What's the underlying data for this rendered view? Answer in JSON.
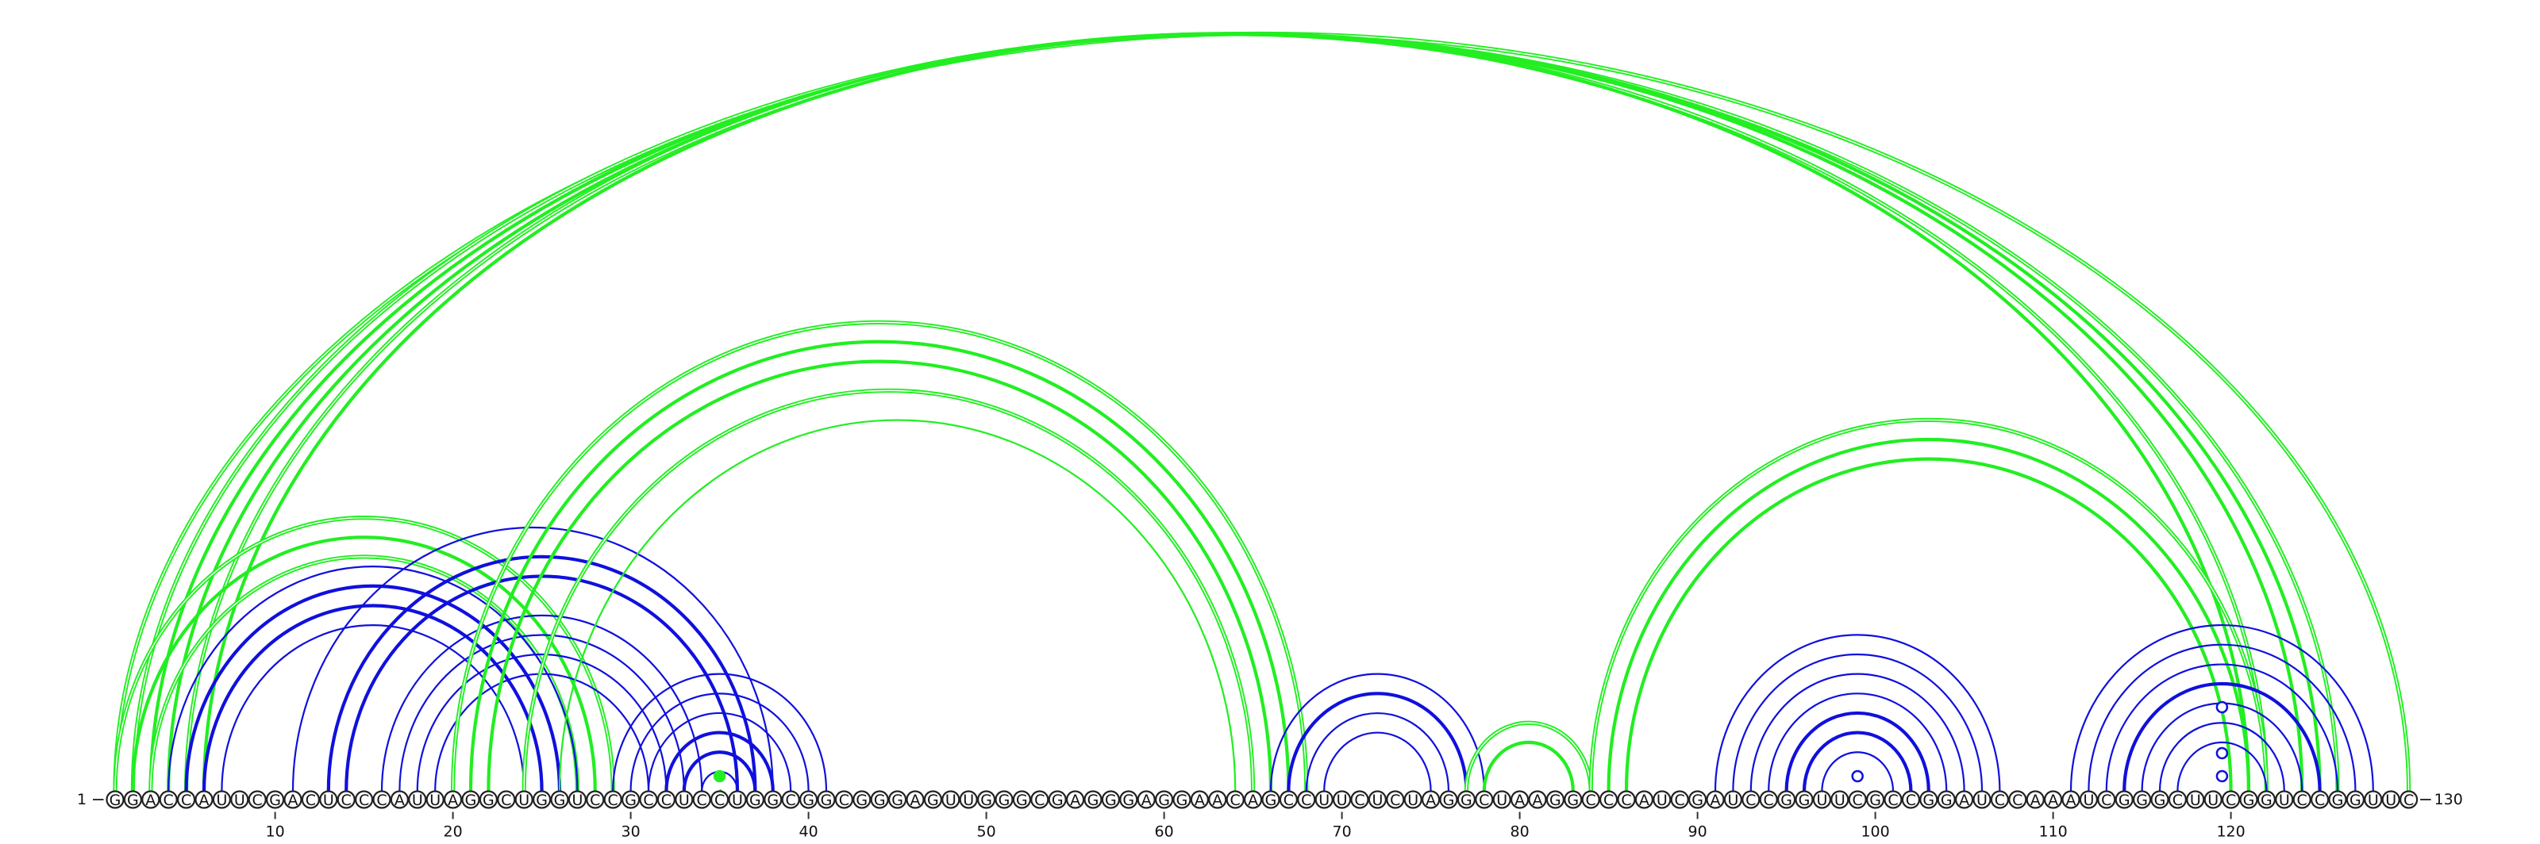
{
  "sequence": "GGACCAUUCGACUCCCAUUAGGCUGGUCCGCCUCCUGGCGGCGGGAGUUGGGCGAGGGAGGAACAGCCUUCUCUAGGCUAAGGCCCAUCGAUCCGGUUCGCCGGAUCCAAAUCGGGCUUCGGUCCGGUUC",
  "start_label": "1",
  "end_label": "130",
  "ticks": [
    10,
    20,
    30,
    40,
    50,
    60,
    70,
    80,
    90,
    100,
    110,
    120
  ],
  "colors": {
    "blue": "#1010dd",
    "green": "#22ee22"
  },
  "arcs": [
    {
      "i": 1,
      "j": 130,
      "color": "green",
      "style": "double"
    },
    {
      "i": 2,
      "j": 126,
      "color": "green",
      "style": "double"
    },
    {
      "i": 3,
      "j": 125,
      "color": "green",
      "style": "thick"
    },
    {
      "i": 4,
      "j": 124,
      "color": "green",
      "style": "thick"
    },
    {
      "i": 5,
      "j": 122,
      "color": "green",
      "style": "double"
    },
    {
      "i": 6,
      "j": 121,
      "color": "green",
      "style": "thick"
    },
    {
      "i": 1,
      "j": 29,
      "color": "green",
      "style": "double"
    },
    {
      "i": 2,
      "j": 28,
      "color": "green",
      "style": "thick"
    },
    {
      "i": 3,
      "j": 27,
      "color": "green",
      "style": "double"
    },
    {
      "i": 4,
      "j": 27,
      "color": "blue",
      "style": "thin"
    },
    {
      "i": 5,
      "j": 26,
      "color": "blue",
      "style": "thick"
    },
    {
      "i": 6,
      "j": 25,
      "color": "blue",
      "style": "thick"
    },
    {
      "i": 7,
      "j": 24,
      "color": "blue",
      "style": "thin"
    },
    {
      "i": 11,
      "j": 38,
      "color": "blue",
      "style": "thin"
    },
    {
      "i": 13,
      "j": 37,
      "color": "blue",
      "style": "thick"
    },
    {
      "i": 14,
      "j": 36,
      "color": "blue",
      "style": "thick"
    },
    {
      "i": 16,
      "j": 34,
      "color": "blue",
      "style": "thin"
    },
    {
      "i": 17,
      "j": 33,
      "color": "blue",
      "style": "thin"
    },
    {
      "i": 18,
      "j": 32,
      "color": "blue",
      "style": "thin"
    },
    {
      "i": 19,
      "j": 31,
      "color": "blue",
      "style": "thin"
    },
    {
      "i": 20,
      "j": 68,
      "color": "green",
      "style": "double"
    },
    {
      "i": 21,
      "j": 67,
      "color": "green",
      "style": "thick"
    },
    {
      "i": 22,
      "j": 66,
      "color": "green",
      "style": "thick"
    },
    {
      "i": 24,
      "j": 65,
      "color": "green",
      "style": "double"
    },
    {
      "i": 26,
      "j": 64,
      "color": "green",
      "style": "thin"
    },
    {
      "i": 29,
      "j": 41,
      "color": "blue",
      "style": "thin"
    },
    {
      "i": 30,
      "j": 40,
      "color": "blue",
      "style": "thin"
    },
    {
      "i": 31,
      "j": 39,
      "color": "blue",
      "style": "thin"
    },
    {
      "i": 32,
      "j": 38,
      "color": "blue",
      "style": "thick"
    },
    {
      "i": 33,
      "j": 37,
      "color": "blue",
      "style": "thick"
    },
    {
      "i": 34,
      "j": 36,
      "color": "blue",
      "style": "thin"
    },
    {
      "i": 35,
      "j": 35.1,
      "color": "green",
      "style": "thin"
    },
    {
      "i": 66,
      "j": 78,
      "color": "blue",
      "style": "thin"
    },
    {
      "i": 67,
      "j": 77,
      "color": "blue",
      "style": "thick"
    },
    {
      "i": 68,
      "j": 76,
      "color": "blue",
      "style": "thin"
    },
    {
      "i": 69,
      "j": 75,
      "color": "blue",
      "style": "thin"
    },
    {
      "i": 77,
      "j": 84,
      "color": "green",
      "style": "double"
    },
    {
      "i": 78,
      "j": 83,
      "color": "green",
      "style": "thick"
    },
    {
      "i": 84,
      "j": 122,
      "color": "green",
      "style": "double"
    },
    {
      "i": 85,
      "j": 121,
      "color": "green",
      "style": "thick"
    },
    {
      "i": 86,
      "j": 120,
      "color": "green",
      "style": "thick"
    },
    {
      "i": 91,
      "j": 107,
      "color": "blue",
      "style": "thin"
    },
    {
      "i": 92,
      "j": 106,
      "color": "blue",
      "style": "thin"
    },
    {
      "i": 93,
      "j": 105,
      "color": "blue",
      "style": "thin"
    },
    {
      "i": 94,
      "j": 104,
      "color": "blue",
      "style": "thin"
    },
    {
      "i": 95,
      "j": 103,
      "color": "blue",
      "style": "thick"
    },
    {
      "i": 96,
      "j": 102,
      "color": "blue",
      "style": "thick"
    },
    {
      "i": 97,
      "j": 101,
      "color": "blue",
      "style": "thin"
    },
    {
      "i": 111,
      "j": 128,
      "color": "blue",
      "style": "thin"
    },
    {
      "i": 112,
      "j": 127,
      "color": "blue",
      "style": "thin"
    },
    {
      "i": 113,
      "j": 126,
      "color": "blue",
      "style": "thin"
    },
    {
      "i": 114,
      "j": 125,
      "color": "blue",
      "style": "thick"
    },
    {
      "i": 115,
      "j": 124,
      "color": "blue",
      "style": "thin"
    },
    {
      "i": 116,
      "j": 123,
      "color": "blue",
      "style": "thin"
    },
    {
      "i": 117,
      "j": 122,
      "color": "blue",
      "style": "thin"
    }
  ],
  "markers": [
    {
      "pos": 35,
      "level": 1,
      "color": "green",
      "filled": true
    },
    {
      "pos": 99,
      "level": 1,
      "color": "blue",
      "filled": false
    },
    {
      "pos": 119.5,
      "level": 1,
      "color": "blue",
      "filled": false
    },
    {
      "pos": 119.5,
      "level": 2,
      "color": "blue",
      "filled": false
    },
    {
      "pos": 119.5,
      "level": 4,
      "color": "blue",
      "filled": false
    }
  ]
}
